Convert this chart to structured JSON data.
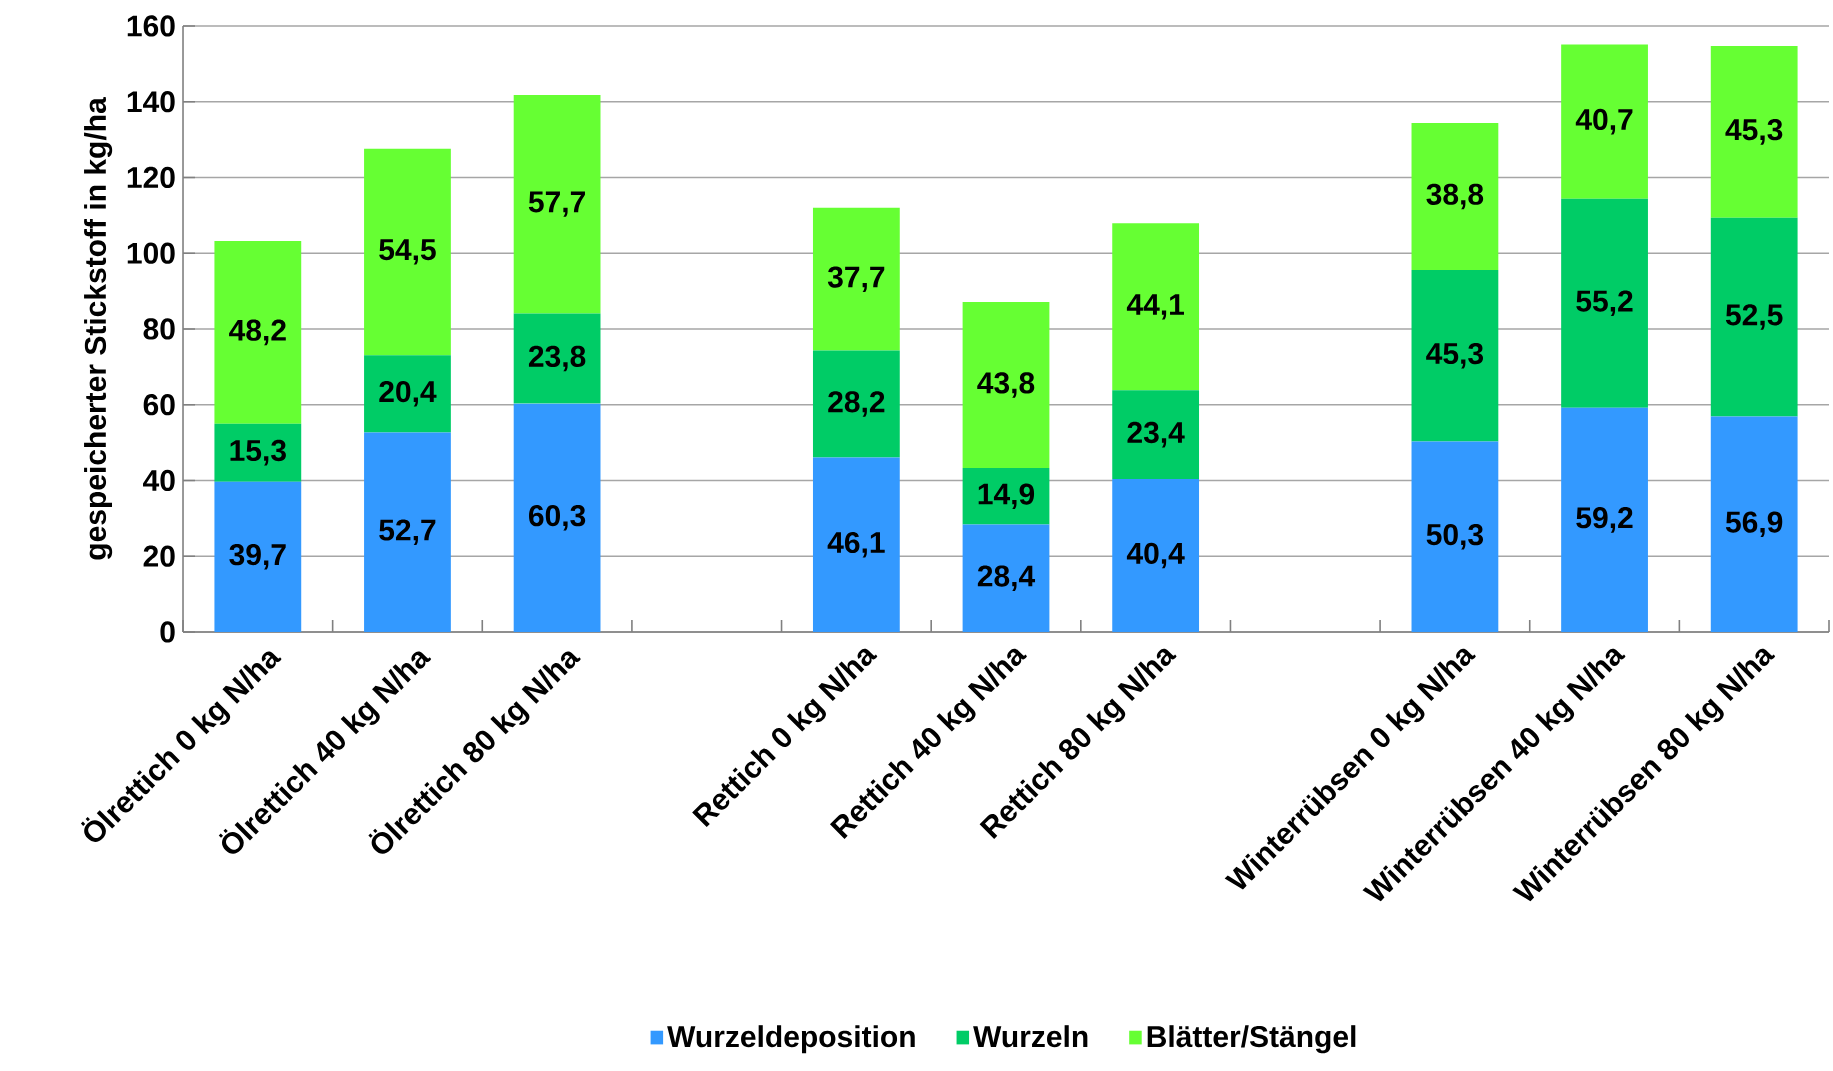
{
  "chart_data": {
    "type": "bar",
    "stacked": true,
    "ylabel": "gespeicherter Stickstoff in kg/ha",
    "categories": [
      "Ölrettich 0 kg N/ha",
      "Ölrettich 40 kg N/ha",
      "Ölrettich 80 kg N/ha",
      null,
      "Rettich 0 kg N/ha",
      "Rettich 40 kg N/ha",
      "Rettich 80 kg N/ha",
      null,
      "Winterrübsen 0 kg N/ha",
      "Winterrübsen 40 kg N/ha",
      "Winterrübsen 80 kg N/ha"
    ],
    "series": [
      {
        "name": "Wurzeldeposition",
        "color": "#3399ff",
        "values": [
          39.7,
          52.7,
          60.3,
          null,
          46.1,
          28.4,
          40.4,
          null,
          50.3,
          59.2,
          56.9
        ],
        "value_labels": [
          "39,7",
          "52,7",
          "60,3",
          null,
          "46,1",
          "28,4",
          "40,4",
          null,
          "50,3",
          "59,2",
          "56,9"
        ]
      },
      {
        "name": "Wurzeln",
        "color": "#00cc66",
        "values": [
          15.3,
          20.4,
          23.8,
          null,
          28.2,
          14.9,
          23.4,
          null,
          45.3,
          55.2,
          52.5
        ],
        "value_labels": [
          "15,3",
          "20,4",
          "23,8",
          null,
          "28,2",
          "14,9",
          "23,4",
          null,
          "45,3",
          "55,2",
          "52,5"
        ]
      },
      {
        "name": "Blätter/Stängel",
        "color": "#66ff33",
        "values": [
          48.2,
          54.5,
          57.7,
          null,
          37.7,
          43.8,
          44.1,
          null,
          38.8,
          40.7,
          45.3
        ],
        "value_labels": [
          "48,2",
          "54,5",
          "57,7",
          null,
          "37,7",
          "43,8",
          "44,1",
          null,
          "38,8",
          "40,7",
          "45,3"
        ]
      }
    ],
    "ylim": [
      0,
      160
    ],
    "yticks": [
      0,
      20,
      40,
      60,
      80,
      100,
      120,
      140,
      160
    ],
    "grid": "y",
    "legend": "bottom"
  }
}
